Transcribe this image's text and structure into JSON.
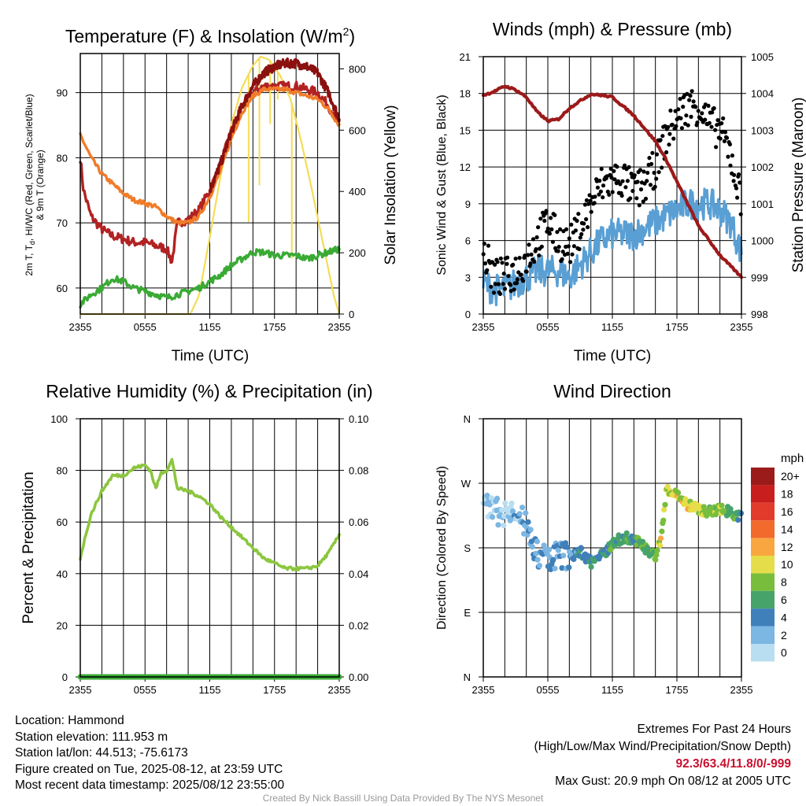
{
  "panels": {
    "temp": {
      "title": "Temperature (F) & Insolation (W/m",
      "title_sup": "2",
      "title_end": ")",
      "xlabel": "Time (UTC)",
      "ylabel_left_line1": "2m T, T",
      "ylabel_left_sub": "d",
      "ylabel_left_line1b": ", HI/WC (Red, Green, Scarlet/Blue)",
      "ylabel_left_line2": "& 9m T (Orange)",
      "ylabel_right": "Solar Insolation (Yellow)"
    },
    "wind": {
      "title": "Winds (mph) & Pressure (mb)",
      "xlabel": "Time (UTC)",
      "ylabel_left": "Sonic Wind & Gust (Blue, Black)",
      "ylabel_right": "Station Pressure (Maroon)"
    },
    "rh": {
      "title": "Relative Humidity (%) & Precipitation (in)",
      "ylabel_left": "Percent & Precipitation"
    },
    "dir": {
      "title": "Wind Direction",
      "ylabel_left": "Direction (Colored By Speed)",
      "legend_title": "mph"
    }
  },
  "colors": {
    "temp": "#b22222",
    "temp_9m": "#f07c2a",
    "dewpoint": "#3aaa35",
    "heat_index": "#8b1010",
    "insolation": "#f5dc57",
    "wind": "#5a9fd4",
    "gust": "#000000",
    "pressure": "#9c1a1a",
    "rh": "#8cc63f",
    "precip": "#3aaa35"
  },
  "chart_data": [
    {
      "type": "line",
      "id": "temp",
      "x_ticks": [
        "2355",
        "0555",
        "1155",
        "1755",
        "2355"
      ],
      "x_range_hours": [
        0,
        24
      ],
      "ylim_left": [
        56,
        96
      ],
      "yticks_left": [
        60,
        70,
        80,
        90
      ],
      "ylim_right": [
        0,
        850
      ],
      "yticks_right": [
        0,
        200,
        400,
        600,
        800
      ],
      "series": [
        {
          "color_key": "temp",
          "x": [
            0,
            0.3,
            1,
            2,
            3,
            4,
            5,
            6,
            7,
            8,
            8.5,
            9,
            10,
            11,
            12,
            13,
            14,
            15,
            16,
            17,
            18,
            19,
            20,
            21,
            22,
            23,
            24
          ],
          "y": [
            80,
            75,
            71,
            69,
            68,
            67.5,
            67,
            67,
            66.5,
            66,
            64,
            70,
            70.5,
            72,
            75,
            79,
            84,
            88,
            90,
            91,
            91,
            91,
            91,
            90.5,
            90,
            88,
            85
          ]
        },
        {
          "color_key": "temp_9m",
          "x": [
            0,
            1,
            2,
            3,
            4,
            5,
            6,
            7,
            8,
            9,
            10,
            11,
            12,
            13,
            14,
            15,
            16,
            17,
            18,
            19,
            20,
            21,
            22,
            23,
            24
          ],
          "y": [
            83.5,
            80,
            77.5,
            76,
            74.5,
            73.5,
            73,
            72.5,
            71,
            70,
            70,
            71,
            74,
            78,
            83,
            87,
            89.5,
            90.5,
            90.5,
            90.5,
            90,
            89.5,
            89,
            87.5,
            85
          ]
        },
        {
          "color_key": "heat_index",
          "x": [
            12,
            13,
            14,
            15,
            16,
            17,
            18,
            19,
            20,
            21,
            22,
            23,
            24
          ],
          "y": [
            75,
            79,
            84,
            88,
            91,
            93,
            94,
            94.5,
            94.5,
            94,
            93,
            90,
            86
          ]
        },
        {
          "color_key": "dewpoint",
          "x": [
            0,
            1,
            2,
            3,
            4,
            5,
            6,
            7,
            8,
            9,
            10,
            11,
            12,
            13,
            14,
            15,
            16,
            17,
            18,
            19,
            20,
            21,
            22,
            23,
            24
          ],
          "y": [
            57.5,
            59,
            60,
            61.5,
            61,
            60,
            59.5,
            59,
            58.5,
            59,
            59.5,
            60,
            61,
            62,
            63.5,
            64.5,
            65.5,
            65.5,
            65,
            65,
            65,
            64.5,
            65,
            65.5,
            66
          ]
        }
      ],
      "insolation": {
        "x": [
          0,
          10.2,
          11,
          12,
          13,
          14,
          15,
          16,
          16.7,
          17.5,
          18.5,
          19.5,
          20.5,
          21.5,
          22.5,
          23.5,
          24
        ],
        "y": [
          0,
          0,
          60,
          250,
          450,
          620,
          740,
          810,
          840,
          830,
          780,
          700,
          560,
          400,
          230,
          60,
          0
        ]
      }
    },
    {
      "type": "line",
      "id": "wind",
      "x_ticks": [
        "2355",
        "0555",
        "1155",
        "1755",
        "2355"
      ],
      "x_range_hours": [
        0,
        24
      ],
      "ylim_left": [
        0,
        21
      ],
      "yticks_left": [
        0,
        3,
        6,
        9,
        12,
        15,
        18,
        21
      ],
      "ylim_right": [
        998,
        1005
      ],
      "yticks_right": [
        998,
        999,
        1000,
        1001,
        1002,
        1003,
        1004,
        1005
      ],
      "wind": {
        "x": [
          0,
          1,
          2,
          3,
          4,
          5,
          6,
          7,
          8,
          9,
          10,
          11,
          12,
          13,
          14,
          15,
          16,
          17,
          18,
          19,
          20,
          21,
          22,
          23,
          24
        ],
        "y": [
          2.5,
          2,
          2,
          2.5,
          3,
          3.5,
          3.5,
          3.5,
          3,
          4,
          5,
          6,
          6.5,
          6.5,
          6.5,
          7,
          7.5,
          8,
          8.5,
          9,
          9,
          9,
          8.5,
          7.5,
          5
        ]
      },
      "gust": {
        "x": [
          0,
          1,
          2,
          3,
          4,
          5,
          6,
          7,
          8,
          9,
          10,
          11,
          12,
          13,
          14,
          15,
          16,
          17,
          18,
          19,
          20,
          21,
          22,
          23,
          24
        ],
        "y": [
          5,
          3,
          3,
          3.5,
          4.5,
          6,
          7.5,
          6,
          5.5,
          7,
          9,
          10.5,
          11,
          11,
          10,
          10.5,
          12,
          14.5,
          16,
          17,
          17,
          15.5,
          15,
          13,
          9
        ]
      },
      "pressure": {
        "x": [
          0,
          1,
          2,
          3,
          4,
          5,
          6,
          7,
          8,
          9,
          10,
          11,
          12,
          13,
          14,
          15,
          16,
          17,
          18,
          19,
          20,
          21,
          22,
          23,
          24
        ],
        "y": [
          1003.95,
          1004.05,
          1004.2,
          1004.1,
          1003.9,
          1003.5,
          1003.25,
          1003.3,
          1003.6,
          1003.8,
          1003.98,
          1003.95,
          1003.9,
          1003.65,
          1003.4,
          1003.05,
          1002.7,
          1002.2,
          1001.6,
          1001,
          1000.4,
          1000,
          999.6,
          999.3,
          999
        ]
      }
    },
    {
      "type": "line",
      "id": "rh",
      "x_ticks": [
        "2355",
        "0555",
        "1155",
        "1755",
        "2355"
      ],
      "x_range_hours": [
        0,
        24
      ],
      "ylim_left": [
        0,
        100
      ],
      "yticks_left": [
        0,
        20,
        40,
        60,
        80,
        100
      ],
      "ylim_right": [
        0,
        0.1
      ],
      "yticks_right": [
        "0.00",
        "0.02",
        "0.04",
        "0.06",
        "0.08",
        "0.10"
      ],
      "rh": {
        "x": [
          0,
          0.5,
          1,
          2,
          3,
          4,
          5,
          6,
          6.5,
          7,
          7.5,
          8,
          8.5,
          9,
          10,
          11,
          12,
          13,
          14,
          15,
          16,
          17,
          18,
          19,
          20,
          21,
          22,
          23,
          24
        ],
        "y": [
          46,
          55,
          63,
          72,
          78,
          78,
          81,
          82,
          80,
          73,
          79,
          80,
          84,
          73,
          72,
          70,
          67,
          62,
          58,
          54,
          50,
          46,
          44,
          42,
          42,
          42,
          43,
          48,
          55
        ]
      },
      "precip": {
        "x": [
          0,
          24
        ],
        "y": [
          0,
          0
        ]
      }
    },
    {
      "type": "scatter",
      "id": "dir",
      "x_ticks": [
        "2355",
        "0555",
        "1155",
        "1755",
        "2355"
      ],
      "x_range_hours": [
        0,
        24
      ],
      "yticks_left": [
        "N",
        "E",
        "S",
        "W",
        "N"
      ],
      "ylim_degrees": [
        0,
        360
      ],
      "speed_bins": [
        "20+",
        "18",
        "16",
        "14",
        "12",
        "10",
        "8",
        "6",
        "4",
        "2",
        "0"
      ],
      "speed_colors": [
        "#9b1b1b",
        "#c81e1e",
        "#e23b2b",
        "#f26a2c",
        "#f9a640",
        "#e6dd4a",
        "#79bd3d",
        "#46a36a",
        "#3f7fba",
        "#7cb6e2",
        "#b9def1"
      ],
      "direction_trend": {
        "x": [
          0,
          1,
          2,
          3,
          4,
          5,
          6,
          7,
          8,
          9,
          10,
          11,
          12,
          13,
          14,
          15,
          16,
          16.5,
          17,
          18,
          19,
          20,
          21,
          22,
          23,
          24
        ],
        "y": [
          245,
          230,
          230,
          225,
          215,
          170,
          165,
          172,
          168,
          175,
          160,
          170,
          185,
          195,
          192,
          180,
          170,
          190,
          260,
          255,
          240,
          235,
          230,
          235,
          230,
          222
        ],
        "speed": [
          1,
          1,
          1,
          2,
          3,
          3,
          3,
          3,
          3,
          4,
          5,
          5,
          6,
          6,
          6,
          6,
          7,
          10,
          8,
          10,
          10,
          9,
          8,
          8,
          7,
          5
        ]
      }
    }
  ],
  "footer": {
    "location": "Location: Hammond",
    "elevation": "Station elevation: 111.953 m",
    "latlon": "Station lat/lon: 44.513; -75.6173",
    "created": "Figure created on Tue, 2025-08-12, at 23:59 UTC",
    "recent": "Most recent data timestamp: 2025/08/12 23:55:00",
    "extremes_title": "Extremes For Past 24 Hours",
    "extremes_subtitle": "(High/Low/Max Wind/Precipitation/Snow Depth)",
    "extremes_values": "92.3/63.4/11.8/0/-999",
    "max_gust": "Max Gust: 20.9 mph On 08/12 at 2005 UTC",
    "credit": "Created By Nick Bassill Using Data Provided By The NYS Mesonet"
  }
}
